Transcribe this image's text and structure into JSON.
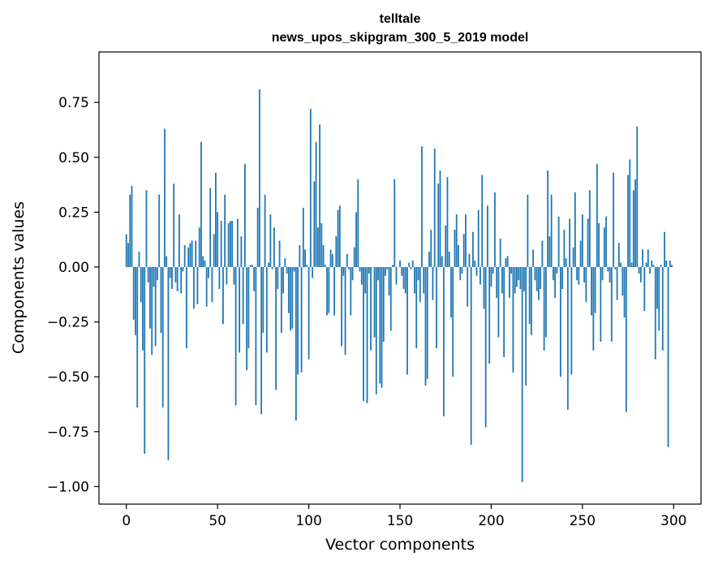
{
  "chart_data": {
    "type": "bar",
    "title": "telltale",
    "subtitle": "news_upos_skipgram_300_5_2019 model",
    "xlabel": "Vector components",
    "ylabel": "Components values",
    "xlim": [
      -15,
      315
    ],
    "ylim": [
      -1.08,
      0.98
    ],
    "xticks": [
      0,
      50,
      100,
      150,
      200,
      250,
      300
    ],
    "yticks": [
      0.75,
      0.5,
      0.25,
      0.0,
      -0.25,
      -0.5,
      -0.75,
      -1.0
    ],
    "xtick_labels": [
      "0",
      "50",
      "100",
      "150",
      "200",
      "250",
      "300"
    ],
    "ytick_labels": [
      "0.75",
      "0.50",
      "0.25",
      "0.00",
      "−0.25",
      "−0.50",
      "−0.75",
      "−1.00"
    ],
    "grid": false,
    "bar_color": "#1f77b4",
    "x_start": 0,
    "values": [
      0.15,
      0.11,
      0.33,
      0.37,
      -0.24,
      -0.31,
      -0.64,
      0.07,
      -0.16,
      -0.38,
      -0.85,
      0.35,
      -0.07,
      -0.28,
      -0.4,
      -0.09,
      -0.36,
      -0.06,
      0.33,
      -0.3,
      -0.64,
      0.63,
      0.05,
      -0.88,
      -0.05,
      -0.1,
      0.38,
      -0.07,
      -0.11,
      0.24,
      -0.12,
      -0.02,
      0.1,
      -0.37,
      0.09,
      0.11,
      0.12,
      -0.19,
      0.12,
      -0.17,
      0.18,
      0.57,
      0.05,
      0.03,
      -0.18,
      -0.05,
      0.36,
      -0.16,
      0.15,
      0.43,
      0.25,
      -0.1,
      0.21,
      -0.26,
      0.33,
      -0.08,
      0.2,
      0.21,
      0.21,
      -0.08,
      -0.63,
      0.22,
      -0.39,
      0.14,
      -0.26,
      0.47,
      -0.47,
      -0.37,
      0.01,
      0.01,
      -0.11,
      -0.63,
      0.27,
      0.81,
      -0.67,
      -0.3,
      0.33,
      -0.39,
      0.02,
      0.24,
      -0.01,
      0.18,
      -0.56,
      -0.1,
      0.12,
      -0.3,
      -0.12,
      0.04,
      -0.03,
      -0.21,
      -0.29,
      -0.28,
      -0.02,
      -0.7,
      -0.49,
      0.1,
      -0.48,
      0.27,
      0.08,
      0.01,
      -0.42,
      0.72,
      -0.05,
      0.39,
      0.57,
      0.18,
      0.65,
      0.2,
      0.1,
      0.01,
      -0.22,
      -0.21,
      0.08,
      0.06,
      -0.22,
      0.14,
      0.26,
      0.28,
      -0.36,
      -0.04,
      -0.4,
      0.06,
      -0.01,
      -0.22,
      -0.06,
      0.09,
      0.25,
      0.4,
      -0.02,
      -0.08,
      -0.61,
      -0.12,
      -0.62,
      -0.03,
      -0.38,
      0.0,
      -0.32,
      -0.58,
      -0.06,
      -0.53,
      -0.55,
      -0.34,
      -0.04,
      -0.01,
      -0.13,
      -0.29,
      0.01,
      0.4,
      -0.08,
      0.0,
      0.03,
      -0.04,
      -0.1,
      -0.12,
      -0.49,
      0.02,
      -0.01,
      0.03,
      -0.12,
      -0.37,
      -0.06,
      -0.16,
      0.55,
      -0.12,
      -0.54,
      -0.51,
      0.07,
      0.17,
      -0.15,
      0.54,
      -0.37,
      0.38,
      0.44,
      0.05,
      -0.68,
      0.19,
      0.41,
      0.07,
      -0.23,
      -0.5,
      0.17,
      0.24,
      0.1,
      -0.06,
      -0.03,
      0.15,
      0.24,
      -0.18,
      0.06,
      -0.81,
      0.16,
      0.03,
      -0.04,
      0.26,
      -0.08,
      0.42,
      -0.19,
      -0.73,
      0.28,
      -0.44,
      -0.09,
      -0.03,
      0.34,
      -0.14,
      -0.32,
      0.13,
      -0.12,
      -0.41,
      0.04,
      0.05,
      -0.14,
      -0.03,
      -0.48,
      -0.12,
      -0.09,
      -0.06,
      -0.1,
      -0.98,
      -0.11,
      -0.54,
      0.33,
      -0.26,
      -0.31,
      0.08,
      -0.06,
      -0.11,
      -0.15,
      -0.1,
      0.12,
      -0.38,
      -0.32,
      0.44,
      0.14,
      0.33,
      -0.06,
      -0.14,
      -0.03,
      0.23,
      -0.5,
      -0.1,
      0.17,
      0.04,
      -0.65,
      0.22,
      -0.49,
      0.09,
      0.34,
      -0.06,
      -0.08,
      0.12,
      0.24,
      -0.07,
      -0.16,
      0.22,
      0.35,
      -0.22,
      -0.38,
      -0.21,
      0.47,
      0.2,
      -0.34,
      -0.06,
      0.18,
      0.23,
      -0.02,
      -0.07,
      -0.34,
      0.43,
      -0.01,
      -0.15,
      0.11,
      0.02,
      -0.13,
      -0.23,
      -0.66,
      0.42,
      0.49,
      0.02,
      0.35,
      0.4,
      0.64,
      -0.03,
      -0.07,
      0.08,
      -0.2,
      0.02,
      0.08,
      -0.03,
      0.03,
      0.01,
      -0.42,
      -0.19,
      -0.29,
      0.01,
      -0.38,
      0.16,
      0.03,
      -0.82,
      0.03,
      0.01
    ]
  }
}
